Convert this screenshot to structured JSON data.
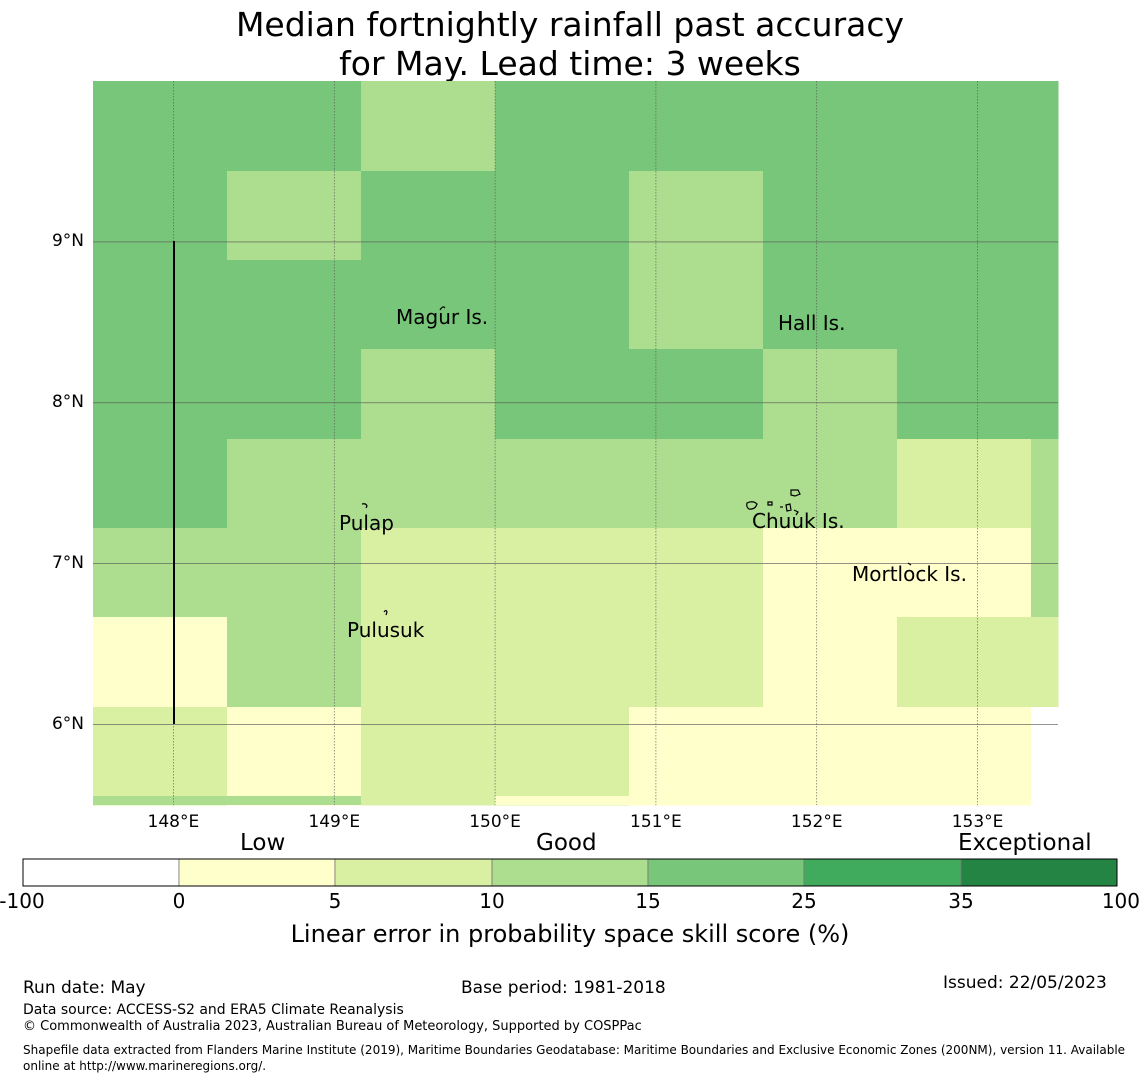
{
  "title": {
    "line1": "Median fortnightly rainfall past accuracy",
    "line2": "for May. Lead time: 3 weeks"
  },
  "map": {
    "lon_range": [
      147.5,
      153.5
    ],
    "lat_range": [
      5.5,
      10.0
    ],
    "x_ticks": [
      "148°E",
      "149°E",
      "150°E",
      "151°E",
      "152°E",
      "153°E"
    ],
    "y_ticks": [
      "9°N",
      "8°N",
      "7°N",
      "6°N"
    ],
    "places": [
      {
        "name": "Magur Is.",
        "lon": 149.65,
        "lat": 8.56
      },
      {
        "name": "Hall Is.",
        "lon": 151.85,
        "lat": 8.52
      },
      {
        "name": "Pulap",
        "lon": 149.2,
        "lat": 7.35
      },
      {
        "name": "Chuuk Is.",
        "lon": 151.8,
        "lat": 7.38
      },
      {
        "name": "Mortlock Is.",
        "lon": 152.6,
        "lat": 7.02
      },
      {
        "name": "Pulusuk",
        "lon": 149.3,
        "lat": 6.68
      }
    ],
    "grid_cells_skill_class": [
      [
        "15-25",
        "15-25",
        "10-15",
        "15-25",
        "15-25",
        "15-25",
        "15-25",
        "15-25"
      ],
      [
        "15-25",
        "10-15",
        "15-25",
        "15-25",
        "10-15",
        "15-25",
        "15-25",
        "15-25"
      ],
      [
        "15-25",
        "15-25",
        "15-25",
        "15-25",
        "10-15",
        "15-25",
        "15-25",
        "15-25"
      ],
      [
        "15-25",
        "15-25",
        "10-15",
        "15-25",
        "15-25",
        "10-15",
        "15-25",
        "15-25"
      ],
      [
        "15-25",
        "10-15",
        "10-15",
        "10-15",
        "10-15",
        "10-15",
        "5-10",
        "10-15"
      ],
      [
        "10-15",
        "10-15",
        "5-10",
        "5-10",
        "5-10",
        "0-5",
        "0-5",
        "10-15"
      ],
      [
        "0-5",
        "10-15",
        "5-10",
        "5-10",
        "5-10",
        "0-5",
        "5-10",
        "5-10"
      ],
      [
        "5-10",
        "0-5",
        "5-10",
        "5-10",
        "0-5",
        "0-5",
        "0-5",
        "none"
      ]
    ]
  },
  "colorbar": {
    "categories": [
      "Low",
      "Good",
      "Exceptional"
    ],
    "ticks": [
      "-100",
      "0",
      "5",
      "10",
      "15",
      "25",
      "35",
      "100"
    ],
    "colors": [
      "#ffffff",
      "#ffffcc",
      "#d9f0a3",
      "#addd8e",
      "#78c679",
      "#41ab5d",
      "#238443"
    ],
    "label": "Linear error in probability space skill score (%)"
  },
  "footer": {
    "run_date": "Run date: May",
    "base_period": "Base period: 1981-2018",
    "issued": "Issued: 22/05/2023",
    "data_source": "Data source: ACCESS-S2 and ERA5 Climate Reanalysis",
    "copyright": "© Commonwealth of Australia 2023, Australian Bureau of Meteorology, Supported by COSPPac",
    "shapefile": "Shapefile data extracted from Flanders Marine Institute (2019), Maritime Boundaries Geodatabase: Maritime Boundaries and Exclusive Economic Zones (200NM), version 11. Available online at http://www.marineregions.org/."
  }
}
